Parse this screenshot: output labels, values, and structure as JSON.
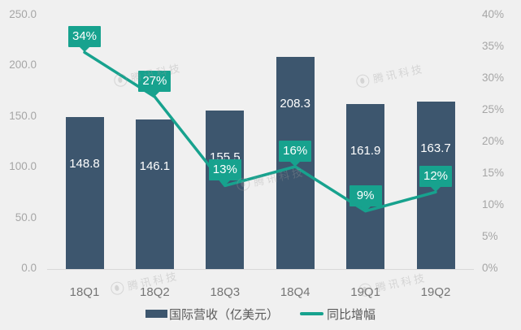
{
  "chart_data": {
    "type": "bar",
    "title": "",
    "categories": [
      "18Q1",
      "18Q2",
      "18Q3",
      "18Q4",
      "19Q1",
      "19Q2"
    ],
    "series": [
      {
        "name": "国际营收（亿美元）",
        "type": "bar",
        "axis": "left",
        "values": [
          148.8,
          146.1,
          155.5,
          208.3,
          161.9,
          163.7
        ],
        "labels": [
          "148.8",
          "146.1",
          "155.5",
          "208.3",
          "161.9",
          "163.7"
        ],
        "color": "#3d566e"
      },
      {
        "name": "同比增幅",
        "type": "line",
        "axis": "right",
        "values": [
          34,
          27,
          13,
          16,
          9,
          12
        ],
        "labels": [
          "34%",
          "27%",
          "13%",
          "16%",
          "9%",
          "12%"
        ],
        "color": "#17a28e"
      }
    ],
    "left_axis": {
      "min": 0,
      "max": 250,
      "ticks": [
        250,
        200,
        150,
        100,
        50,
        0
      ],
      "tick_labels": [
        "250.0",
        "200.0",
        "150.0",
        "100.0",
        "50.0",
        "0.0"
      ]
    },
    "right_axis": {
      "min": 0,
      "max": 40,
      "ticks": [
        40,
        35,
        30,
        25,
        20,
        15,
        10,
        5,
        0
      ],
      "tick_labels": [
        "40%",
        "35%",
        "30%",
        "25%",
        "20%",
        "15%",
        "10%",
        "5%",
        "0%"
      ]
    },
    "grid": false,
    "legend_position": "bottom"
  },
  "legend": {
    "revenue_label": "国际营收（亿美元）",
    "growth_label": "同比增幅"
  },
  "watermark": {
    "text": "腾讯科技"
  },
  "colors": {
    "background": "#f0f0f0",
    "bar": "#3d566e",
    "line": "#17a28e",
    "axis_text": "#a6a6a6",
    "category_text": "#757575",
    "legend_text": "#595959",
    "baseline": "#d9d9d9",
    "value_label_text": "#ffffff"
  }
}
